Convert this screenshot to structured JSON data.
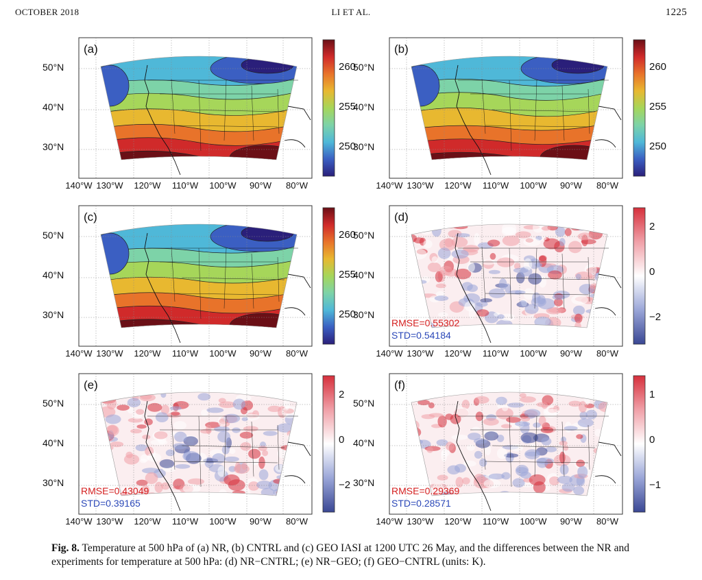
{
  "header": {
    "left": "OCTOBER 2018",
    "center": "LI ET AL.",
    "page": "1225"
  },
  "panels": [
    {
      "label": "(a)",
      "kind": "temp",
      "lat_ticks": [
        "50°N",
        "40°N",
        "30°N"
      ],
      "lon_ticks": [
        "140°W",
        "130°W",
        "120°W",
        "110°W",
        "100°W",
        "90°W",
        "80°W"
      ],
      "cbar_ticks": [
        "260",
        "255",
        "250"
      ],
      "cbar_scheme": "temperature"
    },
    {
      "label": "(b)",
      "kind": "temp",
      "lat_ticks": [
        "50°N",
        "40°N",
        "30°N"
      ],
      "lon_ticks": [
        "140°W",
        "130°W",
        "120°W",
        "110°W",
        "100°W",
        "90°W",
        "80°W"
      ],
      "cbar_ticks": [
        "260",
        "255",
        "250"
      ],
      "cbar_scheme": "temperature"
    },
    {
      "label": "(c)",
      "kind": "temp",
      "lat_ticks": [
        "50°N",
        "40°N",
        "30°N"
      ],
      "lon_ticks": [
        "140°W",
        "130°W",
        "120°W",
        "110°W",
        "100°W",
        "90°W",
        "80°W"
      ],
      "cbar_ticks": [
        "260",
        "255",
        "250"
      ],
      "cbar_scheme": "temperature"
    },
    {
      "label": "(d)",
      "kind": "diff",
      "lat_ticks": [
        "50°N",
        "40°N",
        "30°N"
      ],
      "lon_ticks": [
        "140°W",
        "130°W",
        "120°W",
        "110°W",
        "100°W",
        "90°W",
        "80°W"
      ],
      "cbar_ticks": [
        "2",
        "0",
        "−2"
      ],
      "cbar_scheme": "difference",
      "rmse": "RMSE=0.55302",
      "std": "STD=0.54184"
    },
    {
      "label": "(e)",
      "kind": "diff",
      "lat_ticks": [
        "50°N",
        "40°N",
        "30°N"
      ],
      "lon_ticks": [
        "140°W",
        "130°W",
        "120°W",
        "110°W",
        "100°W",
        "90°W",
        "80°W"
      ],
      "cbar_ticks": [
        "2",
        "0",
        "−2"
      ],
      "cbar_scheme": "difference",
      "rmse": "RMSE=0.43049",
      "std": "STD=0.39165"
    },
    {
      "label": "(f)",
      "kind": "diff",
      "lat_ticks": [
        "50°N",
        "40°N",
        "30°N"
      ],
      "lon_ticks": [
        "140°W",
        "130°W",
        "120°W",
        "110°W",
        "100°W",
        "90°W",
        "80°W"
      ],
      "cbar_ticks": [
        "1",
        "0",
        "−1"
      ],
      "cbar_scheme": "difference",
      "rmse": "RMSE=0.29369",
      "std": "STD=0.28571"
    }
  ],
  "colors": {
    "temperature_scale": [
      "#2a1f7a",
      "#3b5fc2",
      "#4fb8d8",
      "#7dd3a8",
      "#a6d65a",
      "#e8b830",
      "#e8732a",
      "#d02a2a",
      "#6b0f16"
    ],
    "difference_scale": [
      "#3a4794",
      "#9aa6d8",
      "#ffffff",
      "#f0a0a8",
      "#d6303c"
    ],
    "rmse_text": "#d42020",
    "std_text": "#2b48b8"
  },
  "caption": {
    "figno": "Fig. 8.",
    "text": " Temperature at 500 hPa of (a) NR, (b) CNTRL and (c) GEO IASI at 1200 UTC 26 May, and the differences between the NR and experiments for temperature at 500 hPa: (d) NR−CNTRL; (e) NR−GEO; (f) GEO−CNTRL (units: K)."
  }
}
